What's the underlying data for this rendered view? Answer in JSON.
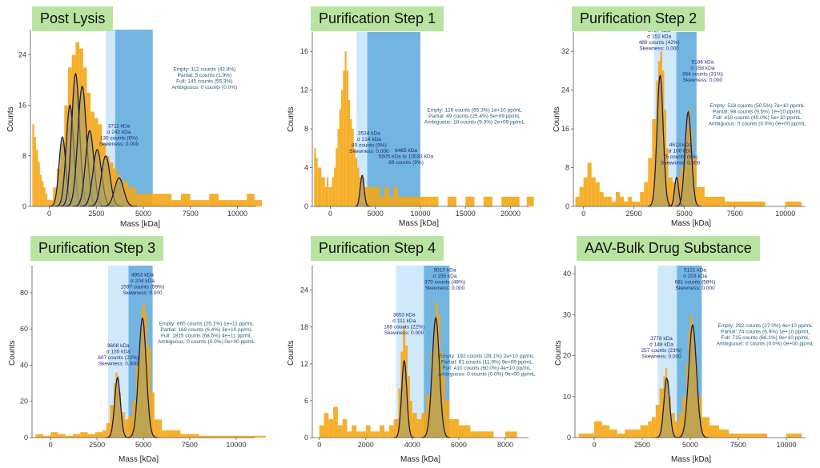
{
  "colors": {
    "histogram": "#f5a614",
    "fit_fill": "#a7a165",
    "fit_line": "#1c1c4a",
    "band_light": "#cfe9fb",
    "band_dark": "#5aa8dc",
    "title_bg": "#b9e3a0"
  },
  "chart_data": [
    {
      "type": "bar",
      "title": "Post Lysis",
      "xlabel": "Mass [kDa]",
      "ylabel": "Counts",
      "xlim": [
        -1000,
        11000
      ],
      "ylim": [
        0,
        28
      ],
      "xticks": [
        0,
        2500,
        5000,
        7500,
        10000
      ],
      "yticks": [
        0,
        8,
        16,
        24
      ],
      "bands": {
        "light": [
          3000,
          3500
        ],
        "dark": [
          3500,
          5500
        ]
      },
      "histogram": {
        "x": [
          -900,
          -800,
          -700,
          -600,
          -500,
          -400,
          -300,
          -200,
          -100,
          0,
          200,
          400,
          600,
          800,
          1000,
          1200,
          1400,
          1600,
          1800,
          2000,
          2200,
          2400,
          2600,
          2800,
          3000,
          3200,
          3400,
          3600,
          3800,
          4000,
          4200,
          4400,
          4600,
          4800,
          5000,
          5500,
          6000,
          6500,
          7000,
          7500,
          8000,
          8500,
          9000,
          9500,
          10000,
          10500,
          10900
        ],
        "values": [
          13,
          11,
          9,
          7,
          5,
          4,
          3,
          2,
          1,
          1,
          3,
          6,
          10,
          16,
          22,
          24,
          26,
          25,
          22,
          18,
          15,
          14,
          13,
          10,
          8,
          7,
          6,
          5,
          4,
          4,
          3,
          3,
          2,
          2,
          2,
          2,
          2,
          1,
          2,
          1,
          1,
          2,
          1,
          1,
          1,
          2,
          1
        ]
      },
      "fits": [
        {
          "mu": 700,
          "sigma": 180,
          "amp": 11
        },
        {
          "mu": 1100,
          "sigma": 200,
          "amp": 16
        },
        {
          "mu": 1400,
          "sigma": 210,
          "amp": 21
        },
        {
          "mu": 1750,
          "sigma": 230,
          "amp": 19
        },
        {
          "mu": 2150,
          "sigma": 220,
          "amp": 12
        },
        {
          "mu": 2550,
          "sigma": 230,
          "amp": 9
        },
        {
          "mu": 3000,
          "sigma": 230,
          "amp": 8
        },
        {
          "mu": 3711,
          "sigma": 242,
          "amp": 4.5
        }
      ],
      "annotations": [
        {
          "lines": [
            "3711 kDa",
            "σ 242 kDa",
            "130 counts (6%)",
            "Skewness: 0.000"
          ],
          "x": 3700,
          "y": 12.5,
          "color": "blue"
        },
        {
          "lines": [
            "Empty: 112 counts (42.8%)",
            "Partial: 5 counts (1.9%)",
            "Full: 145 counts (55.3%)",
            "Ambiguous: 0 counts (0.0%)"
          ],
          "x": 8250,
          "y": 21.5,
          "color": "teal"
        }
      ]
    },
    {
      "type": "bar",
      "title": "Purification Step 1",
      "xlabel": "Mass [kDa]",
      "ylabel": "Counts",
      "xlim": [
        -2000,
        22000
      ],
      "ylim": [
        0,
        18
      ],
      "xticks": [
        0,
        5000,
        10000,
        15000,
        20000
      ],
      "yticks": [
        0,
        4,
        8,
        12,
        16
      ],
      "bands": {
        "light": [
          2900,
          4100
        ],
        "dark": [
          4100,
          10000
        ]
      },
      "histogram": {
        "x": [
          -1800,
          -1600,
          -1400,
          -1200,
          -1000,
          -800,
          -600,
          -400,
          -200,
          0,
          200,
          400,
          600,
          800,
          1000,
          1200,
          1400,
          1600,
          1800,
          2000,
          2200,
          2400,
          2600,
          2800,
          3000,
          3200,
          3400,
          3600,
          3800,
          4000,
          4500,
          5000,
          5500,
          6000,
          6500,
          7000,
          7500,
          8000,
          9000,
          10000,
          11000,
          12000,
          13000,
          14000,
          15000,
          16000,
          17000,
          18000,
          19000,
          20000,
          21000,
          21800
        ],
        "values": [
          6,
          5,
          4,
          4,
          3,
          3,
          2,
          3,
          2,
          2,
          3,
          4,
          6,
          8,
          10,
          12,
          14,
          16,
          14,
          11,
          9,
          8,
          6,
          5,
          4,
          3,
          3,
          3,
          2,
          2,
          2,
          2,
          1,
          2,
          1,
          2,
          1,
          1,
          1,
          1,
          1,
          0,
          1,
          0,
          1,
          0,
          1,
          0,
          1,
          1,
          0,
          1
        ]
      },
      "fits": [
        {
          "mu": 3534,
          "sigma": 214,
          "amp": 3.2
        }
      ],
      "annotations": [
        {
          "lines": [
            "3534 kDa",
            "σ 214 kDa",
            "85 counts (9%)",
            "Skewness: 0.000"
          ],
          "x": 4300,
          "y": 7.4,
          "color": "blue"
        },
        {
          "lines": [
            "6465 kDa",
            "5505 kDa to 10033 kDa",
            "89 counts (9%)"
          ],
          "x": 8400,
          "y": 5.6,
          "color": "blue"
        },
        {
          "lines": [
            "Empty: 126 counts (65.3%) 1e+10 pp/mL",
            "Partial: 49 counts (25.4%) 5e+09 pp/mL",
            "Ambiguous: 18 counts (9.3%) 2e+09 pp/mL"
          ],
          "x": 16000,
          "y": 9.8,
          "color": "teal"
        }
      ]
    },
    {
      "type": "bar",
      "title": "Purification Step 2",
      "xlabel": "Mass [kDa]",
      "ylabel": "Counts",
      "xlim": [
        -500,
        11000
      ],
      "ylim": [
        0,
        36
      ],
      "xticks": [
        0,
        2500,
        5000,
        7500,
        10000
      ],
      "yticks": [
        0,
        8,
        16,
        24,
        32
      ],
      "bands": {
        "light": [
          3500,
          4600
        ],
        "dark": [
          4600,
          5600
        ]
      },
      "histogram": {
        "x": [
          -400,
          -200,
          0,
          200,
          400,
          600,
          800,
          1000,
          1200,
          1400,
          1600,
          1800,
          2000,
          2200,
          2400,
          2600,
          2800,
          3000,
          3200,
          3400,
          3600,
          3700,
          3800,
          3900,
          4000,
          4100,
          4200,
          4400,
          4600,
          4800,
          5000,
          5100,
          5200,
          5300,
          5400,
          5600,
          6000,
          7000,
          8000,
          9000,
          10000,
          10800
        ],
        "values": [
          2,
          4,
          6,
          9,
          6,
          5,
          3,
          2,
          2,
          1,
          3,
          2,
          1,
          2,
          1,
          1,
          3,
          5,
          10,
          18,
          26,
          30,
          32,
          28,
          20,
          12,
          6,
          5,
          6,
          8,
          14,
          18,
          20,
          16,
          10,
          4,
          2,
          1,
          1,
          0,
          1,
          0
        ]
      },
      "fits": [
        {
          "mu": 3797,
          "sigma": 152,
          "amp": 27
        },
        {
          "mu": 4613,
          "sigma": 100,
          "amp": 6
        },
        {
          "mu": 5186,
          "sigma": 158,
          "amp": 19.5
        }
      ],
      "annotations": [
        {
          "lines": [
            "3797 kDa",
            "σ 152 kDa",
            "489 counts (42%)",
            "Skewness: 0.000"
          ],
          "x": 3750,
          "y": 36,
          "color": "blue"
        },
        {
          "lines": [
            "5186 kDa",
            "σ 158 kDa",
            "364 counts (31%)",
            "Skewness: 0.000"
          ],
          "x": 5900,
          "y": 29.5,
          "color": "blue"
        },
        {
          "lines": [
            "4613 kDa",
            "σ 100 kDa",
            "75 counts (6%)",
            "Skewness: 0.000"
          ],
          "x": 4800,
          "y": 12.4,
          "color": "blue"
        },
        {
          "lines": [
            "Empty: 518 counts (50.5%) 7e+10 pp/mL",
            "Partial: 98 counts (9.5%) 1e+10 pp/mL",
            "Full: 410 counts (40.0%) 5e+10 pp/mL",
            "Ambiguous: 0 counts (0.0%) 0e+00 pp/mL"
          ],
          "x": 8600,
          "y": 20.5,
          "color": "teal"
        }
      ]
    },
    {
      "type": "bar",
      "title": "Purification Step 3",
      "xlabel": "Mass [kDa]",
      "ylabel": "Counts",
      "xlim": [
        -1000,
        11000
      ],
      "ylim": [
        0,
        95
      ],
      "xticks": [
        0,
        2500,
        5000,
        7500,
        10000
      ],
      "yticks": [
        0,
        20,
        40,
        60,
        80
      ],
      "bands": {
        "light": [
          3100,
          4200
        ],
        "dark": [
          4200,
          5500
        ]
      },
      "histogram": {
        "x": [
          -800,
          -400,
          0,
          400,
          800,
          1200,
          1600,
          2000,
          2400,
          2800,
          3000,
          3200,
          3400,
          3500,
          3600,
          3700,
          3800,
          4000,
          4200,
          4400,
          4600,
          4800,
          4900,
          5000,
          5100,
          5200,
          5400,
          5600,
          6000,
          7000,
          8000,
          9000,
          10000,
          10800
        ],
        "values": [
          2,
          1,
          3,
          2,
          1,
          2,
          3,
          2,
          3,
          4,
          8,
          18,
          30,
          36,
          34,
          25,
          14,
          10,
          12,
          20,
          40,
          60,
          72,
          74,
          68,
          50,
          25,
          10,
          4,
          2,
          1,
          1,
          1,
          1
        ]
      },
      "fits": [
        {
          "mu": 3608,
          "sigma": 155,
          "amp": 33
        },
        {
          "mu": 4953,
          "sigma": 204,
          "amp": 66
        }
      ],
      "annotations": [
        {
          "lines": [
            "4953 kDa",
            "σ 204 kDa",
            "1597 counts (59%)",
            "Skewness: 0.000"
          ],
          "x": 4950,
          "y": 89,
          "color": "blue"
        },
        {
          "lines": [
            "3608 kDa",
            "σ 155 kDa",
            "607 counts (22%)",
            "Skewness: 0.000"
          ],
          "x": 3650,
          "y": 50,
          "color": "blue"
        },
        {
          "lines": [
            "Empty: 665 counts (25.1%) 1e+11 pp/mL",
            "Partial: 169 counts (6.4%) 3e+10 pp/mL",
            "Full: 1815 counts (68.5%) 4e+11 pp/mL",
            "Ambiguous: 0 counts (0.0%) 0e+00 pp/mL"
          ],
          "x": 8400,
          "y": 62,
          "color": "teal"
        }
      ]
    },
    {
      "type": "bar",
      "title": "Purification Step 4",
      "xlabel": "Mass [kDa]",
      "ylabel": "Counts",
      "xlim": [
        -300,
        9000
      ],
      "ylim": [
        0,
        28
      ],
      "xticks": [
        0,
        2000,
        4000,
        6000,
        8000
      ],
      "yticks": [
        0,
        6,
        12,
        18,
        24
      ],
      "bands": {
        "light": [
          3300,
          4500
        ],
        "dark": [
          4500,
          5600
        ]
      },
      "histogram": {
        "x": [
          0,
          200,
          400,
          600,
          800,
          1000,
          1200,
          1400,
          1600,
          1800,
          2000,
          2200,
          2400,
          2600,
          2800,
          3000,
          3200,
          3400,
          3500,
          3600,
          3700,
          3800,
          3900,
          4000,
          4200,
          4400,
          4600,
          4800,
          4900,
          5000,
          5100,
          5200,
          5300,
          5400,
          5600,
          6000,
          6500,
          7000,
          7500,
          8000,
          8500
        ],
        "values": [
          2,
          4,
          3,
          5,
          2,
          3,
          1,
          2,
          1,
          1,
          2,
          1,
          1,
          2,
          1,
          2,
          3,
          8,
          14,
          18,
          15,
          10,
          6,
          4,
          3,
          4,
          7,
          14,
          18,
          22,
          20,
          14,
          10,
          6,
          3,
          2,
          1,
          1,
          0,
          1,
          0
        ]
      },
      "fits": [
        {
          "mu": 3653,
          "sigma": 111,
          "amp": 12.5
        },
        {
          "mu": 5010,
          "sigma": 155,
          "amp": 19.5
        }
      ],
      "annotations": [
        {
          "lines": [
            "5010 kDa",
            "σ 155 kDa",
            "370 counts (48%)",
            "Skewness: 0.000"
          ],
          "x": 5400,
          "y": 27,
          "color": "blue"
        },
        {
          "lines": [
            "3653 kDa",
            "σ 111 kDa",
            "168 counts (22%)",
            "Skewness: 0.000"
          ],
          "x": 3650,
          "y": 19.7,
          "color": "blue"
        },
        {
          "lines": [
            "Empty: 192 counts (28.1%) 2e+10 pp/mL",
            "Partial: 81 counts (11.9%) 9e+09 pp/mL",
            "Full: 410 counts (60.0%) 4e+10 pp/mL",
            "Ambiguous: 0 counts (0.0%) 0e+00 pp/mL"
          ],
          "x": 7200,
          "y": 13,
          "color": "teal"
        }
      ]
    },
    {
      "type": "bar",
      "title": "AAV-Bulk Drug Substance",
      "xlabel": "Mass [kDa]",
      "ylabel": "Counts",
      "xlim": [
        -1000,
        11000
      ],
      "ylim": [
        0,
        42
      ],
      "xticks": [
        0,
        2500,
        5000,
        7500,
        10000
      ],
      "yticks": [
        0,
        10,
        20,
        30,
        40
      ],
      "bands": {
        "light": [
          3300,
          4300
        ],
        "dark": [
          4300,
          5600
        ]
      },
      "histogram": {
        "x": [
          -800,
          -400,
          0,
          400,
          800,
          1200,
          1600,
          2000,
          2400,
          2800,
          3000,
          3200,
          3400,
          3600,
          3700,
          3800,
          3900,
          4000,
          4200,
          4400,
          4600,
          4800,
          4900,
          5000,
          5100,
          5200,
          5300,
          5400,
          5600,
          6000,
          6500,
          7000,
          8000,
          9000,
          10000,
          10800
        ],
        "values": [
          1,
          1,
          4,
          3,
          2,
          1,
          2,
          2,
          3,
          4,
          5,
          8,
          12,
          15,
          17,
          14,
          10,
          6,
          4,
          6,
          10,
          18,
          26,
          30,
          28,
          22,
          16,
          10,
          5,
          3,
          2,
          1,
          1,
          0,
          1,
          0
        ]
      },
      "fits": [
        {
          "mu": 3778,
          "sigma": 148,
          "amp": 14.5
        },
        {
          "mu": 5121,
          "sigma": 203,
          "amp": 27.5
        }
      ],
      "annotations": [
        {
          "lines": [
            "5121 kDa",
            "σ 203 kDa",
            "661 counts (58%)",
            "Skewness: 0.000"
          ],
          "x": 5250,
          "y": 40.5,
          "color": "blue"
        },
        {
          "lines": [
            "3778 kDa",
            "σ 148 kDa",
            "257 counts (23%)",
            "Skewness: 0.000"
          ],
          "x": 3500,
          "y": 23.8,
          "color": "blue"
        },
        {
          "lines": [
            "Empty: 292 counts (27.0%) 4e+10 pp/mL",
            "Partial: 74 counts (6.9%) 1e+10 pp/mL",
            "Full: 715 counts (66.1%) 9e+10 pp/mL",
            "Ambiguous: 0 counts (0.0%) 0e+00 pp/mL"
          ],
          "x": 8900,
          "y": 27,
          "color": "teal"
        }
      ]
    }
  ]
}
